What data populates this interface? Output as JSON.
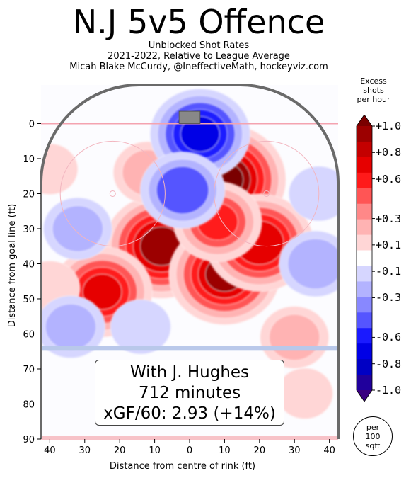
{
  "header": {
    "title": "N.J 5v5 Offence",
    "subtitle_lines": [
      "Unblocked Shot Rates",
      "2021-2022, Relative to League Average",
      "Micah Blake McCurdy, @IneffectiveMath, hockeyviz.com"
    ]
  },
  "annotation": {
    "lines": [
      "With J. Hughes",
      "712 minutes",
      "xGF/60: 2.93 (+14%)"
    ]
  },
  "colorbar": {
    "title_lines": [
      "Excess",
      "shots",
      "per hour"
    ],
    "tick_labels": [
      "+1.0",
      "+0.8",
      "+0.6",
      "+0.3",
      "+0.1",
      "-0.1",
      "-0.3",
      "-0.6",
      "-0.8",
      "-1.0"
    ],
    "tick_values": [
      1.0,
      0.8,
      0.6,
      0.3,
      0.1,
      -0.1,
      -0.3,
      -0.6,
      -0.8,
      -1.0
    ],
    "colors": [
      "#7a0000",
      "#9c0000",
      "#c40000",
      "#e60000",
      "#ff1a1a",
      "#ff5555",
      "#ff8888",
      "#ffb3b3",
      "#ffd6d6",
      "#ffffff",
      "#d6d6ff",
      "#b3b3ff",
      "#8888ff",
      "#5555ff",
      "#1a1aff",
      "#0000e6",
      "#0000c4",
      "#20009c",
      "#3a0080"
    ]
  },
  "unit_badge": {
    "lines": [
      "per",
      "100",
      "sqft"
    ]
  },
  "chart_data": {
    "type": "heatmap",
    "title": "N.J 5v5 Offence",
    "xlabel": "Distance from centre of rink (ft)",
    "ylabel": "Distance from goal line (ft)",
    "xlim": [
      -42.5,
      42.5
    ],
    "ylim": [
      90,
      -11
    ],
    "x_ticks": [
      -40,
      -30,
      -20,
      -10,
      0,
      10,
      20,
      30,
      40
    ],
    "x_tick_labels": [
      "40",
      "30",
      "20",
      "10",
      "0",
      "10",
      "20",
      "30",
      "40"
    ],
    "y_ticks": [
      0,
      10,
      20,
      30,
      40,
      50,
      60,
      70,
      80,
      90
    ],
    "y_tick_labels": [
      "0",
      "10",
      "20",
      "30",
      "40",
      "50",
      "60",
      "70",
      "80",
      "90"
    ],
    "blue_line_ft": 64,
    "blobs": [
      {
        "x": 10,
        "y": 16,
        "value": 1.0
      },
      {
        "x": -8,
        "y": 35,
        "value": 0.9
      },
      {
        "x": 10,
        "y": 43,
        "value": 0.85
      },
      {
        "x": 20,
        "y": 34,
        "value": 0.8
      },
      {
        "x": -25,
        "y": 48,
        "value": 0.7
      },
      {
        "x": 8,
        "y": 28,
        "value": 0.55
      },
      {
        "x": -12,
        "y": 14,
        "value": 0.3
      },
      {
        "x": 30,
        "y": 61,
        "value": 0.3
      },
      {
        "x": 33,
        "y": 77,
        "value": 0.15
      },
      {
        "x": -40,
        "y": 13,
        "value": 0.15
      },
      {
        "x": -40,
        "y": 47,
        "value": 0.2
      },
      {
        "x": 3,
        "y": 3,
        "value": -0.7
      },
      {
        "x": -2,
        "y": 19,
        "value": -0.5
      },
      {
        "x": -32,
        "y": 30,
        "value": -0.3
      },
      {
        "x": -34,
        "y": 58,
        "value": -0.3
      },
      {
        "x": 36,
        "y": 40,
        "value": -0.35
      },
      {
        "x": 37,
        "y": 20,
        "value": -0.2
      },
      {
        "x": -14,
        "y": 58,
        "value": -0.2
      }
    ]
  }
}
